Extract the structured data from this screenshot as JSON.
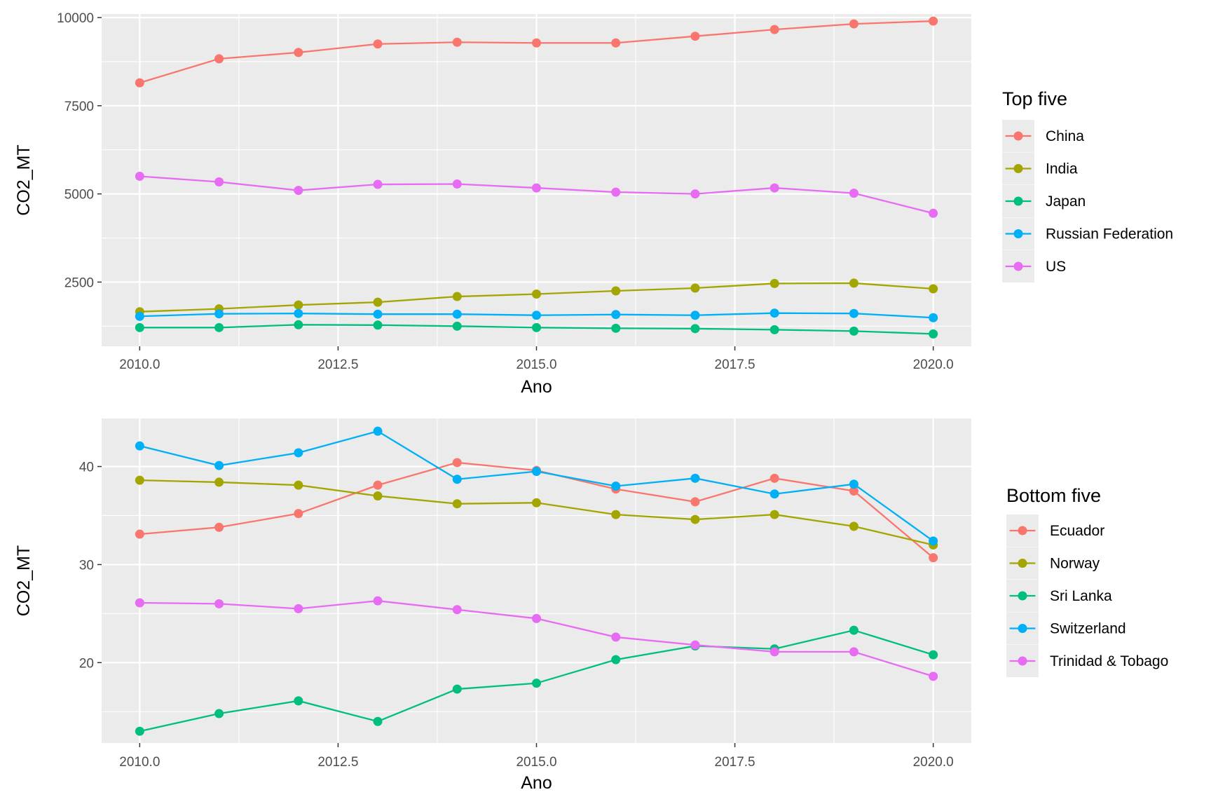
{
  "chart_data": [
    {
      "type": "line",
      "xlabel": "Ano",
      "ylabel": "CO2_MT",
      "xlim": [
        2009.52,
        2020.48
      ],
      "ylim": [
        680,
        10100
      ],
      "xticks": [
        2010.0,
        2012.5,
        2015.0,
        2017.5,
        2020.0
      ],
      "xtick_labels": [
        "2010.0",
        "2012.5",
        "2015.0",
        "2017.5",
        "2020.0"
      ],
      "yticks": [
        2500,
        5000,
        7500,
        10000
      ],
      "ytick_labels": [
        "2500",
        "5000",
        "7500",
        "10000"
      ],
      "grid": true,
      "legend_title": "Top five",
      "legend_position": "right",
      "x": [
        2010,
        2011,
        2012,
        2013,
        2014,
        2015,
        2016,
        2017,
        2018,
        2019,
        2020
      ],
      "series": [
        {
          "name": "China",
          "color": "#F8766D",
          "values": [
            8150,
            8830,
            9010,
            9250,
            9300,
            9280,
            9280,
            9470,
            9660,
            9820,
            9900
          ]
        },
        {
          "name": "India",
          "color": "#A3A500",
          "values": [
            1660,
            1740,
            1850,
            1930,
            2090,
            2160,
            2250,
            2330,
            2460,
            2470,
            2310
          ]
        },
        {
          "name": "Japan",
          "color": "#00BF7D",
          "values": [
            1210,
            1210,
            1290,
            1280,
            1250,
            1210,
            1190,
            1180,
            1150,
            1110,
            1030
          ]
        },
        {
          "name": "Russian Federation",
          "color": "#00B0F6",
          "values": [
            1530,
            1600,
            1610,
            1590,
            1590,
            1560,
            1580,
            1560,
            1620,
            1610,
            1490
          ]
        },
        {
          "name": "US",
          "color": "#E76BF3",
          "values": [
            5500,
            5340,
            5100,
            5270,
            5280,
            5170,
            5050,
            5000,
            5170,
            5020,
            4450
          ]
        }
      ]
    },
    {
      "type": "line",
      "xlabel": "Ano",
      "ylabel": "CO2_MT",
      "xlim": [
        2009.52,
        2020.48
      ],
      "ylim": [
        11.8,
        44.9
      ],
      "xticks": [
        2010.0,
        2012.5,
        2015.0,
        2017.5,
        2020.0
      ],
      "xtick_labels": [
        "2010.0",
        "2012.5",
        "2015.0",
        "2017.5",
        "2020.0"
      ],
      "yticks": [
        20,
        30,
        40
      ],
      "ytick_labels": [
        "20",
        "30",
        "40"
      ],
      "grid": true,
      "legend_title": "Bottom five",
      "legend_position": "right",
      "x": [
        2010,
        2011,
        2012,
        2013,
        2014,
        2015,
        2016,
        2017,
        2018,
        2019,
        2020
      ],
      "series": [
        {
          "name": "Ecuador",
          "color": "#F8766D",
          "values": [
            33.1,
            33.8,
            35.2,
            38.1,
            40.4,
            39.6,
            37.7,
            36.4,
            38.8,
            37.5,
            30.7
          ]
        },
        {
          "name": "Norway",
          "color": "#A3A500",
          "values": [
            38.6,
            38.4,
            38.1,
            37.0,
            36.2,
            36.3,
            35.1,
            34.6,
            35.1,
            33.9,
            32.0
          ]
        },
        {
          "name": "Sri Lanka",
          "color": "#00BF7D",
          "values": [
            13.0,
            14.8,
            16.1,
            14.0,
            17.3,
            17.9,
            20.3,
            21.7,
            21.4,
            23.3,
            20.8
          ]
        },
        {
          "name": "Switzerland",
          "color": "#00B0F6",
          "values": [
            42.1,
            40.1,
            41.4,
            43.6,
            38.7,
            39.5,
            38.0,
            38.8,
            37.2,
            38.2,
            32.4
          ]
        },
        {
          "name": "Trinidad & Tobago",
          "color": "#E76BF3",
          "values": [
            26.1,
            26.0,
            25.5,
            26.3,
            25.4,
            24.5,
            22.6,
            21.8,
            21.1,
            21.1,
            18.6
          ]
        }
      ]
    }
  ]
}
